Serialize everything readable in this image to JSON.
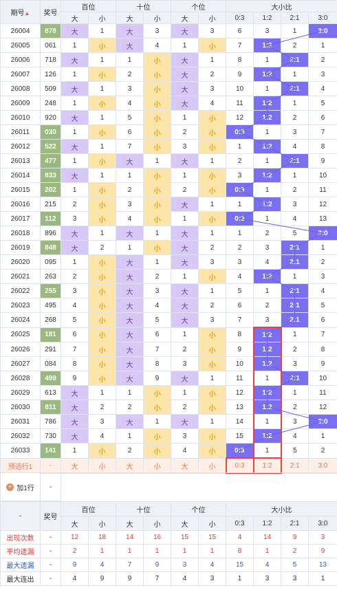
{
  "header": {
    "period": "期号",
    "sort_arrow": "▲",
    "prize": "奖号",
    "groups": [
      "百位",
      "十位",
      "个位",
      "大小比"
    ],
    "sub": [
      "大",
      "小",
      "大",
      "小",
      "大",
      "小",
      "0:3",
      "1:2",
      "2:1",
      "3:0"
    ]
  },
  "rows": [
    {
      "id": "26004",
      "num": "878",
      "green": true,
      "c": [
        "大",
        "1",
        "大",
        "3",
        "大",
        "3",
        "6",
        "3",
        "1",
        "3:0"
      ],
      "r": 9
    },
    {
      "id": "26005",
      "num": "061",
      "green": false,
      "c": [
        "1",
        "小",
        "大",
        "4",
        "1",
        "小",
        "7",
        "1:2",
        "2",
        "1"
      ],
      "r": 7
    },
    {
      "id": "26006",
      "num": "718",
      "green": false,
      "c": [
        "大",
        "1",
        "1",
        "小",
        "大",
        "1",
        "8",
        "1",
        "2:1",
        "2"
      ],
      "r": 8
    },
    {
      "id": "26007",
      "num": "126",
      "green": false,
      "c": [
        "1",
        "小",
        "2",
        "小",
        "大",
        "2",
        "9",
        "1:2",
        "1",
        "3"
      ],
      "r": 7
    },
    {
      "id": "26008",
      "num": "509",
      "green": false,
      "c": [
        "大",
        "1",
        "3",
        "小",
        "大",
        "3",
        "10",
        "1",
        "2:1",
        "4"
      ],
      "r": 8
    },
    {
      "id": "26009",
      "num": "248",
      "green": false,
      "c": [
        "1",
        "小",
        "4",
        "小",
        "大",
        "4",
        "11",
        "1:2",
        "1",
        "5"
      ],
      "r": 7
    },
    {
      "id": "26010",
      "num": "920",
      "green": false,
      "c": [
        "大",
        "1",
        "5",
        "小",
        "1",
        "小",
        "12",
        "1:2",
        "2",
        "6"
      ],
      "r": 7
    },
    {
      "id": "26011",
      "num": "030",
      "green": true,
      "c": [
        "1",
        "小",
        "6",
        "小",
        "2",
        "小",
        "0:3",
        "1",
        "3",
        "7"
      ],
      "r": 6
    },
    {
      "id": "26012",
      "num": "522",
      "green": true,
      "c": [
        "大",
        "1",
        "7",
        "小",
        "3",
        "小",
        "1",
        "1:2",
        "4",
        "8"
      ],
      "r": 7
    },
    {
      "id": "26013",
      "num": "477",
      "green": true,
      "c": [
        "1",
        "小",
        "大",
        "1",
        "大",
        "1",
        "2",
        "1",
        "2:1",
        "9"
      ],
      "r": 8
    },
    {
      "id": "26014",
      "num": "833",
      "green": true,
      "c": [
        "大",
        "1",
        "1",
        "小",
        "1",
        "小",
        "3",
        "1:2",
        "1",
        "10"
      ],
      "r": 7
    },
    {
      "id": "26015",
      "num": "202",
      "green": true,
      "c": [
        "1",
        "小",
        "2",
        "小",
        "2",
        "小",
        "0:3",
        "1",
        "2",
        "11"
      ],
      "r": 6
    },
    {
      "id": "26016",
      "num": "215",
      "green": false,
      "c": [
        "2",
        "小",
        "3",
        "小",
        "大",
        "1",
        "1",
        "1:2",
        "3",
        "12"
      ],
      "r": 7
    },
    {
      "id": "26017",
      "num": "112",
      "green": true,
      "c": [
        "3",
        "小",
        "4",
        "小",
        "1",
        "小",
        "0:3",
        "1",
        "4",
        "13"
      ],
      "r": 6
    },
    {
      "id": "26018",
      "num": "896",
      "green": false,
      "c": [
        "大",
        "1",
        "大",
        "1",
        "大",
        "1",
        "1",
        "2",
        "5",
        "3:0"
      ],
      "r": 9
    },
    {
      "id": "26019",
      "num": "848",
      "green": true,
      "c": [
        "大",
        "2",
        "1",
        "小",
        "大",
        "2",
        "2",
        "3",
        "2:1",
        "1"
      ],
      "r": 8
    },
    {
      "id": "26020",
      "num": "095",
      "green": false,
      "c": [
        "1",
        "小",
        "大",
        "1",
        "大",
        "3",
        "3",
        "4",
        "2:1",
        "2"
      ],
      "r": 8
    },
    {
      "id": "26021",
      "num": "263",
      "green": false,
      "c": [
        "2",
        "小",
        "大",
        "2",
        "1",
        "小",
        "4",
        "1:2",
        "1",
        "3"
      ],
      "r": 7
    },
    {
      "id": "26022",
      "num": "255",
      "green": true,
      "c": [
        "3",
        "小",
        "大",
        "3",
        "大",
        "1",
        "5",
        "1",
        "2:1",
        "4"
      ],
      "r": 8
    },
    {
      "id": "26023",
      "num": "495",
      "green": false,
      "c": [
        "4",
        "小",
        "大",
        "4",
        "大",
        "2",
        "6",
        "2",
        "2:1",
        "5"
      ],
      "r": 8
    },
    {
      "id": "26024",
      "num": "268",
      "green": false,
      "c": [
        "5",
        "小",
        "大",
        "5",
        "大",
        "3",
        "7",
        "3",
        "2:1",
        "6"
      ],
      "r": 8
    },
    {
      "id": "26025",
      "num": "181",
      "green": true,
      "c": [
        "6",
        "小",
        "大",
        "6",
        "1",
        "小",
        "8",
        "1:2",
        "1",
        "7"
      ],
      "r": 7
    },
    {
      "id": "26026",
      "num": "291",
      "green": false,
      "c": [
        "7",
        "小",
        "大",
        "7",
        "2",
        "小",
        "9",
        "1:2",
        "2",
        "8"
      ],
      "r": 7
    },
    {
      "id": "26027",
      "num": "084",
      "green": false,
      "c": [
        "8",
        "小",
        "大",
        "8",
        "3",
        "小",
        "10",
        "1:2",
        "3",
        "9"
      ],
      "r": 7
    },
    {
      "id": "26028",
      "num": "499",
      "green": true,
      "c": [
        "9",
        "小",
        "大",
        "9",
        "大",
        "1",
        "11",
        "1",
        "2:1",
        "10"
      ],
      "r": 8
    },
    {
      "id": "26029",
      "num": "613",
      "green": false,
      "c": [
        "大",
        "1",
        "1",
        "小",
        "1",
        "小",
        "12",
        "1:2",
        "1",
        "11"
      ],
      "r": 7
    },
    {
      "id": "26030",
      "num": "811",
      "green": true,
      "c": [
        "大",
        "2",
        "2",
        "小",
        "2",
        "小",
        "13",
        "1:2",
        "2",
        "12"
      ],
      "r": 7
    },
    {
      "id": "26031",
      "num": "786",
      "green": false,
      "c": [
        "大",
        "3",
        "大",
        "1",
        "大",
        "1",
        "14",
        "1",
        "3",
        "3:0"
      ],
      "r": 9
    },
    {
      "id": "26032",
      "num": "730",
      "green": false,
      "c": [
        "大",
        "4",
        "1",
        "小",
        "3",
        "小",
        "15",
        "1:2",
        "4",
        "1"
      ],
      "r": 7
    },
    {
      "id": "26033",
      "num": "141",
      "green": true,
      "c": [
        "1",
        "小",
        "2",
        "小",
        "4",
        "小",
        "0:3",
        "1",
        "5",
        "2"
      ],
      "r": 6
    }
  ],
  "predict": {
    "label": "预选行1",
    "num": "-",
    "c": [
      "大",
      "小",
      "大",
      "小",
      "大",
      "小",
      "0:3",
      "1:2",
      "2:1",
      "3:0"
    ]
  },
  "add_row": {
    "label": "加1行",
    "value": "-"
  },
  "stats_header": {
    "dash": "-",
    "prize": "奖号",
    "groups": [
      "百位",
      "十位",
      "个位",
      "大小比"
    ],
    "sub": [
      "大",
      "小",
      "大",
      "小",
      "大",
      "小",
      "0:3",
      "1:2",
      "2:1",
      "3:0"
    ]
  },
  "stats": [
    {
      "label": "出现次数",
      "num": "-",
      "cls": "stat-red",
      "v": [
        "12",
        "18",
        "14",
        "16",
        "15",
        "15",
        "4",
        "14",
        "9",
        "3"
      ]
    },
    {
      "label": "平均遗漏",
      "num": "-",
      "cls": "stat-red",
      "v": [
        "2",
        "1",
        "1",
        "1",
        "1",
        "1",
        "8",
        "1",
        "2",
        "9"
      ]
    },
    {
      "label": "最大遗漏",
      "num": "-",
      "cls": "stat-blue",
      "v": [
        "9",
        "4",
        "7",
        "9",
        "3",
        "4",
        "15",
        "4",
        "5",
        "13"
      ]
    },
    {
      "label": "最大连出",
      "num": "-",
      "cls": "stat-dark",
      "v": [
        "4",
        "9",
        "9",
        "7",
        "4",
        "3",
        "1",
        "3",
        "3",
        "1"
      ]
    }
  ]
}
